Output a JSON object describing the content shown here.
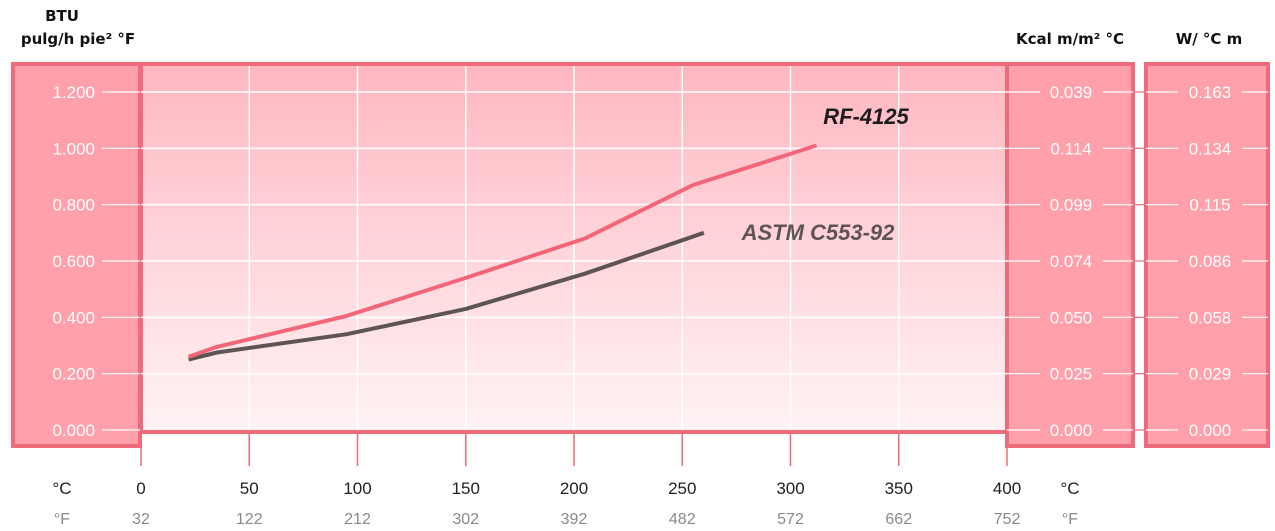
{
  "chart_data": {
    "type": "line",
    "left_axis_label": [
      "BTU",
      "pulg/h pie² °F"
    ],
    "right_axis1_label": "Kcal m/m² °C",
    "right_axis2_label": "W/ °C m",
    "left_ticks": [
      "0.000",
      "0.200",
      "0.400",
      "0.600",
      "0.800",
      "1.000",
      "1.200"
    ],
    "right1_ticks": [
      "0.000",
      "0.025",
      "0.050",
      "0.074",
      "0.099",
      "0.114",
      "0.039"
    ],
    "right2_ticks": [
      "0.000",
      "0.029",
      "0.058",
      "0.086",
      "0.115",
      "0.134",
      "0.163"
    ],
    "x_unit_c": "°C",
    "x_unit_f": "°F",
    "x_ticks_c": [
      "0",
      "50",
      "100",
      "150",
      "200",
      "250",
      "300",
      "350",
      "400"
    ],
    "x_ticks_f": [
      "32",
      "122",
      "212",
      "302",
      "392",
      "482",
      "572",
      "662",
      "752"
    ],
    "xlim": [
      0,
      400
    ],
    "ylim": [
      0,
      1.2
    ],
    "grid": true,
    "series": [
      {
        "name": "RF-4125",
        "color": "#f2667a",
        "x": [
          22,
          35,
          95,
          150,
          205,
          255,
          312
        ],
        "y": [
          0.26,
          0.295,
          0.405,
          0.54,
          0.68,
          0.87,
          1.01
        ]
      },
      {
        "name": "ASTM C553-92",
        "color": "#5e5456",
        "x": [
          22,
          35,
          95,
          150,
          205,
          260
        ],
        "y": [
          0.25,
          0.275,
          0.34,
          0.43,
          0.555,
          0.7
        ]
      }
    ]
  }
}
